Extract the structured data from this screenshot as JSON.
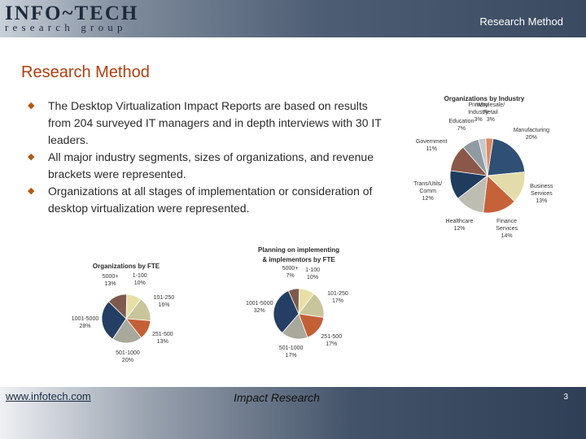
{
  "header": {
    "logo_main": "INFO~TECH",
    "logo_sub": "research group",
    "title": "Research Method"
  },
  "page_title": "Research Method",
  "bullets": [
    "The Desktop Virtualization Impact Reports are based on results from 204 surveyed IT managers and in depth interviews with 30 IT leaders.",
    "All major industry segments, sizes of organizations, and revenue brackets were represented.",
    "Organizations at all stages of implementation or consideration of desktop virtualization were represented."
  ],
  "colors": {
    "accent": "#b23d0e",
    "bullet": "#b25a17"
  },
  "chart_data": [
    {
      "type": "pie",
      "title": "Organizations by Industry",
      "slices": [
        {
          "label": "Manufacturing",
          "value": 20,
          "text": "Manufacturing\n20%",
          "color": "#2f4f74"
        },
        {
          "label": "Business Services",
          "value": 13,
          "text": "Business\nServices\n13%",
          "color": "#e3dcaa"
        },
        {
          "label": "Finance Services",
          "value": 14,
          "text": "Finance\nServices\n14%",
          "color": "#c6623a"
        },
        {
          "label": "Healthcare",
          "value": 12,
          "text": "Healthcare\n12%",
          "color": "#bdbdb2"
        },
        {
          "label": "Trans/Utils/Comm",
          "value": 12,
          "text": "Trans/Utils/\nComm\n12%",
          "color": "#1f3b5e"
        },
        {
          "label": "Government",
          "value": 11,
          "text": "Government\n11%",
          "color": "#8a5848"
        },
        {
          "label": "Education",
          "value": 7,
          "text": "Education\n7%",
          "color": "#8f9aa3"
        },
        {
          "label": "Primary Industry",
          "value": 3,
          "text": "Primary\nIndustry\n3%",
          "color": "#c8c8c8"
        },
        {
          "label": "Wholesale/Retail",
          "value": 3,
          "text": "Wholesale/\nRetail\n3%",
          "color": "#d98b62"
        }
      ]
    },
    {
      "type": "pie",
      "title": "Organizations by FTE",
      "slices": [
        {
          "label": "1-100",
          "value": 10,
          "text": "1-100\n10%",
          "color": "#e8dfa6"
        },
        {
          "label": "101-250",
          "value": 16,
          "text": "101-250\n16%",
          "color": "#c8c59b"
        },
        {
          "label": "251-500",
          "value": 13,
          "text": "251-500\n13%",
          "color": "#c46037"
        },
        {
          "label": "501-1000",
          "value": 20,
          "text": "501-1000\n20%",
          "color": "#a8a89b"
        },
        {
          "label": "1001-5000",
          "value": 28,
          "text": "1001-5000\n28%",
          "color": "#243f63"
        },
        {
          "label": "5000+",
          "value": 13,
          "text": "5000+\n13%",
          "color": "#7d5a4c"
        }
      ]
    },
    {
      "type": "pie",
      "title": "Planning on implementing\n& implementors by FTE",
      "slices": [
        {
          "label": "1-100",
          "value": 10,
          "text": "1-100\n10%",
          "color": "#e8dfa6"
        },
        {
          "label": "101-250",
          "value": 17,
          "text": "101-250\n17%",
          "color": "#c8c59b"
        },
        {
          "label": "251-500",
          "value": 17,
          "text": "251-500\n17%",
          "color": "#c46037"
        },
        {
          "label": "501-1000",
          "value": 17,
          "text": "501-1000\n17%",
          "color": "#a8a89b"
        },
        {
          "label": "1001-5000",
          "value": 32,
          "text": "1001-5000\n32%",
          "color": "#243f63"
        },
        {
          "label": "5000+",
          "value": 7,
          "text": "5000+\n7%",
          "color": "#7d5a4c"
        }
      ]
    }
  ],
  "footer": {
    "url": "www.infotech.com",
    "center": "Impact Research",
    "page": "3"
  }
}
